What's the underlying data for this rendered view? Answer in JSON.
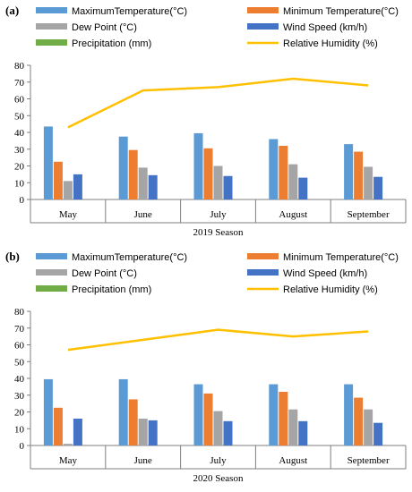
{
  "chart_data": [
    {
      "type": "bar",
      "panel_label": "(a)",
      "xlabel": "2019 Season",
      "categories": [
        "May",
        "June",
        "July",
        "August",
        "September"
      ],
      "ylim": [
        0,
        80
      ],
      "yticks": [
        0,
        10,
        20,
        30,
        40,
        50,
        60,
        70,
        80
      ],
      "legend": [
        {
          "name": "MaximumTemperature(°C)",
          "kind": "bar",
          "color": "#5b9bd5"
        },
        {
          "name": "Minimum Temperature(°C)",
          "kind": "bar",
          "color": "#ed7d31"
        },
        {
          "name": "Dew Point (°C)",
          "kind": "bar",
          "color": "#a5a5a5"
        },
        {
          "name": "Wind Speed (km/h)",
          "kind": "bar",
          "color": "#4472c4"
        },
        {
          "name": "Precipitation (mm)",
          "kind": "bar",
          "color": "#70ad47"
        },
        {
          "name": "Relative Humidity (%)",
          "kind": "line",
          "color": "#ffc000"
        }
      ],
      "series": [
        {
          "name": "MaximumTemperature(°C)",
          "kind": "bar",
          "color": "#5b9bd5",
          "values": [
            43.5,
            37.5,
            39.5,
            36,
            33
          ]
        },
        {
          "name": "Minimum Temperature(°C)",
          "kind": "bar",
          "color": "#ed7d31",
          "values": [
            22.5,
            29.5,
            30.5,
            32,
            28.5
          ]
        },
        {
          "name": "Dew Point (°C)",
          "kind": "bar",
          "color": "#a5a5a5",
          "values": [
            11,
            19,
            20,
            21,
            19.5
          ]
        },
        {
          "name": "Wind Speed (km/h)",
          "kind": "bar",
          "color": "#4472c4",
          "values": [
            15,
            14.5,
            14,
            13,
            13.5
          ]
        },
        {
          "name": "Precipitation (mm)",
          "kind": "bar",
          "color": "#70ad47",
          "values": [
            0,
            0,
            0,
            0,
            0
          ]
        },
        {
          "name": "Relative Humidity (%)",
          "kind": "line",
          "color": "#ffc000",
          "values": [
            43,
            65,
            67,
            72,
            68
          ]
        }
      ]
    },
    {
      "type": "bar",
      "panel_label": "(b)",
      "xlabel": "2020 Season",
      "categories": [
        "May",
        "June",
        "July",
        "August",
        "September"
      ],
      "ylim": [
        0,
        80
      ],
      "yticks": [
        0,
        10,
        20,
        30,
        40,
        50,
        60,
        70,
        80
      ],
      "legend": [
        {
          "name": "MaximumTemperature(°C)",
          "kind": "bar",
          "color": "#5b9bd5"
        },
        {
          "name": "Minimum Temperature(°C)",
          "kind": "bar",
          "color": "#ed7d31"
        },
        {
          "name": "Dew Point (°C)",
          "kind": "bar",
          "color": "#a5a5a5"
        },
        {
          "name": "Wind Speed (km/h)",
          "kind": "bar",
          "color": "#4472c4"
        },
        {
          "name": "Precipitation (mm)",
          "kind": "bar",
          "color": "#70ad47"
        },
        {
          "name": "Relative Humidity (%)",
          "kind": "line",
          "color": "#ffc000"
        }
      ],
      "series": [
        {
          "name": "MaximumTemperature(°C)",
          "kind": "bar",
          "color": "#5b9bd5",
          "values": [
            39.5,
            39.5,
            36.5,
            36.5,
            36.5
          ]
        },
        {
          "name": "Minimum Temperature(°C)",
          "kind": "bar",
          "color": "#ed7d31",
          "values": [
            22.5,
            27.5,
            31,
            32,
            28.5
          ]
        },
        {
          "name": "Dew Point (°C)",
          "kind": "bar",
          "color": "#a5a5a5",
          "values": [
            1,
            16,
            20.5,
            21.5,
            21.5
          ]
        },
        {
          "name": "Wind Speed (km/h)",
          "kind": "bar",
          "color": "#4472c4",
          "values": [
            16,
            15,
            14.5,
            14.5,
            13.5
          ]
        },
        {
          "name": "Precipitation (mm)",
          "kind": "bar",
          "color": "#70ad47",
          "values": [
            0,
            0,
            0,
            0,
            0
          ]
        },
        {
          "name": "Relative Humidity (%)",
          "kind": "line",
          "color": "#ffc000",
          "values": [
            57,
            63,
            69,
            65,
            68
          ]
        }
      ]
    }
  ]
}
